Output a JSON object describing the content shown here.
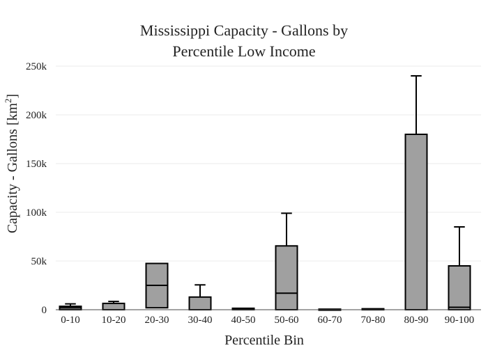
{
  "chart_data": {
    "type": "box",
    "title_lines": [
      "Mississippi Capacity - Gallons by",
      "Percentile Low Income"
    ],
    "xlabel": "Percentile Bin",
    "ylabel": "Capacity - Gallons  [km",
    "ylabel_sup": "2",
    "ylabel_close": "]",
    "ylim": [
      0,
      250000
    ],
    "yticks": [
      0,
      50000,
      100000,
      150000,
      200000,
      250000
    ],
    "ytick_labels": [
      "0",
      "50k",
      "100k",
      "150k",
      "200k",
      "250k"
    ],
    "grid": true,
    "legend": "none",
    "box_color": "#a0a0a0",
    "line_color": "#000000",
    "categories": [
      "0-10",
      "10-20",
      "20-30",
      "30-40",
      "40-50",
      "50-60",
      "60-70",
      "70-80",
      "80-90",
      "90-100"
    ],
    "boxes": [
      {
        "min": 0,
        "q1": 0,
        "median": 2000,
        "q3": 3500,
        "max": 6000
      },
      {
        "min": 0,
        "q1": 0,
        "median": 0,
        "q3": 6500,
        "max": 8500
      },
      {
        "min": 2000,
        "q1": 2000,
        "median": 25000,
        "q3": 47500,
        "max": 47500
      },
      {
        "min": 0,
        "q1": 0,
        "median": 0,
        "q3": 13000,
        "max": 25500
      },
      {
        "min": 0,
        "q1": 0,
        "median": 500,
        "q3": 1500,
        "max": 1500
      },
      {
        "min": 0,
        "q1": 0,
        "median": 17000,
        "q3": 65500,
        "max": 99000
      },
      {
        "min": 0,
        "q1": 0,
        "median": 200,
        "q3": 600,
        "max": 600
      },
      {
        "min": 0,
        "q1": 0,
        "median": 500,
        "q3": 1000,
        "max": 1000
      },
      {
        "min": 0,
        "q1": 0,
        "median": 0,
        "q3": 180000,
        "max": 240000
      },
      {
        "min": 0,
        "q1": 0,
        "median": 2500,
        "q3": 45000,
        "max": 85000
      }
    ]
  }
}
